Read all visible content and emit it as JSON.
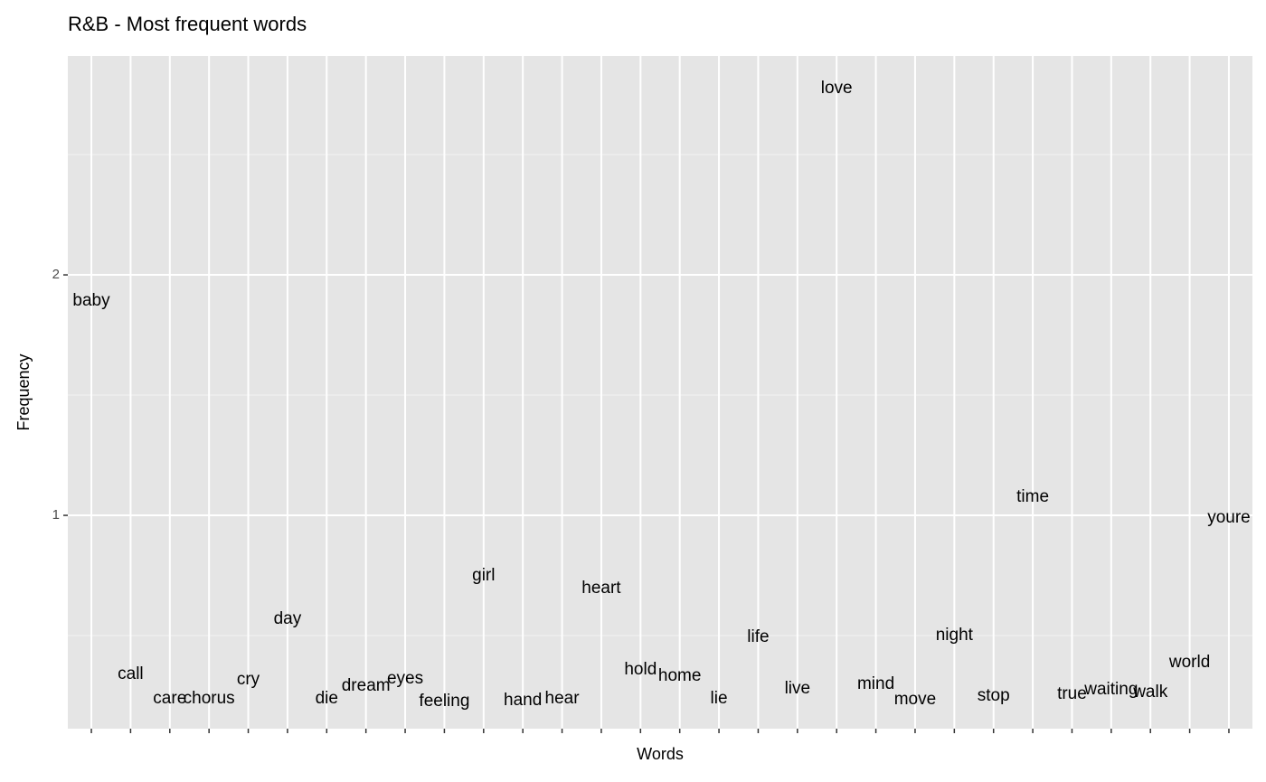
{
  "chart_data": {
    "type": "text",
    "title": "R&B - Most frequent words",
    "x_label": "Words",
    "y_label": "Frequency",
    "categories": [
      "baby",
      "call",
      "care",
      "chorus",
      "cry",
      "day",
      "die",
      "dream",
      "eyes",
      "feeling",
      "girl",
      "hand",
      "hear",
      "heart",
      "hold",
      "home",
      "lie",
      "life",
      "live",
      "love",
      "mind",
      "move",
      "night",
      "stop",
      "time",
      "true",
      "waiting",
      "walk",
      "world",
      "youre"
    ],
    "values": [
      1.891,
      0.338,
      0.237,
      0.237,
      0.316,
      0.568,
      0.237,
      0.289,
      0.32,
      0.226,
      0.748,
      0.229,
      0.237,
      0.695,
      0.357,
      0.331,
      0.237,
      0.492,
      0.278,
      2.774,
      0.297,
      0.233,
      0.5,
      0.248,
      1.075,
      0.256,
      0.274,
      0.263,
      0.387,
      0.989
    ],
    "ylim": [
      0.113,
      2.91
    ],
    "yticks": [
      1,
      2
    ],
    "grid": true,
    "color": "#000000"
  }
}
